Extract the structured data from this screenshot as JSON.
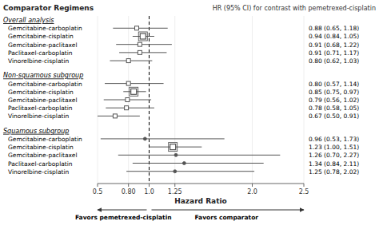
{
  "chart_data": {
    "type": "forest",
    "title": "Comparator Regimens",
    "subtitle": "HR (95% CI) for contrast with pemetrexed-cisplatin",
    "xlabel": "Hazard Ratio",
    "xlim": [
      0.5,
      2.5
    ],
    "xticks": [
      0.5,
      {
        "value": 0.8,
        "label": "0.80"
      },
      {
        "value": 1.0,
        "label": "1.0"
      },
      1.25,
      {
        "value": 2.0,
        "label": "2.0"
      },
      2.5
    ],
    "ref_line": 1.0,
    "color": "#555555",
    "annotations": [
      "Favors pemetrexed-cisplatin",
      "Favors comparator"
    ],
    "sections": [
      {
        "label": "Overall analysis",
        "rows": [
          {
            "name": "Gemcitabine-carboplatin",
            "value": 0.88,
            "lo": 0.65,
            "hi": 1.18,
            "value_label": "0.88 (0.65, 1.18)",
            "marker": "square"
          },
          {
            "name": "Gemcitabine-cisplatin",
            "value": 0.94,
            "lo": 0.84,
            "hi": 1.05,
            "value_label": "0.94 (0.84, 1.05)",
            "marker": "square_large"
          },
          {
            "name": "Gemcitabine-paclitaxel",
            "value": 0.91,
            "lo": 0.68,
            "hi": 1.22,
            "value_label": "0.91 (0.68, 1.22)",
            "marker": "square"
          },
          {
            "name": "Paclitaxel-carboplatin",
            "value": 0.91,
            "lo": 0.71,
            "hi": 1.17,
            "value_label": "0.91 (0.71, 1.17)",
            "marker": "square"
          },
          {
            "name": "Vinorelbine-cisplatin",
            "value": 0.8,
            "lo": 0.62,
            "hi": 1.03,
            "value_label": "0.80 (0.62, 1.03)",
            "marker": "square"
          }
        ]
      },
      {
        "label": "Non-squamous subgroup",
        "rows": [
          {
            "name": "Gemcitabine-carboplatin",
            "value": 0.8,
            "lo": 0.57,
            "hi": 1.14,
            "value_label": "0.80 (0.57, 1.14)",
            "marker": "square"
          },
          {
            "name": "Gemcitabine-cisplatin",
            "value": 0.85,
            "lo": 0.75,
            "hi": 0.97,
            "value_label": "0.85 (0.75, 0.97)",
            "marker": "square_large"
          },
          {
            "name": "Gemcitabine-paclitaxel",
            "value": 0.79,
            "lo": 0.56,
            "hi": 1.02,
            "value_label": "0.79 (0.56, 1.02)",
            "marker": "square"
          },
          {
            "name": "Paclitaxel-carboplatin",
            "value": 0.78,
            "lo": 0.58,
            "hi": 1.05,
            "value_label": "0.78 (0.58, 1.05)",
            "marker": "square"
          },
          {
            "name": "Vinorelbine-cisplatin",
            "value": 0.67,
            "lo": 0.5,
            "hi": 0.91,
            "value_label": "0.67 (0.50, 0.91)",
            "marker": "square"
          }
        ]
      },
      {
        "label": "Squamous subgroup",
        "rows": [
          {
            "name": "Gemcitabine-carboplatin",
            "value": 0.96,
            "lo": 0.53,
            "hi": 1.73,
            "value_label": "0.96 (0.53, 1.73)",
            "marker": "circle"
          },
          {
            "name": "Gemcitabine-cisplatin",
            "value": 1.23,
            "lo": 1.0,
            "hi": 1.51,
            "value_label": "1.23 (1.00, 1.51)",
            "marker": "square_large"
          },
          {
            "name": "Gemcitabine-paclitaxel",
            "value": 1.26,
            "lo": 0.7,
            "hi": 2.27,
            "value_label": "1.26 (0.70, 2.27)",
            "marker": "circle"
          },
          {
            "name": "Paclitaxel-carboplatin",
            "value": 1.34,
            "lo": 0.84,
            "hi": 2.11,
            "value_label": "1.34 (0.84, 2.11)",
            "marker": "circle"
          },
          {
            "name": "Vinorelbine-cisplatin",
            "value": 1.25,
            "lo": 0.78,
            "hi": 2.02,
            "value_label": "1.25 (0.78, 2.02)",
            "marker": "circle"
          }
        ]
      }
    ]
  }
}
